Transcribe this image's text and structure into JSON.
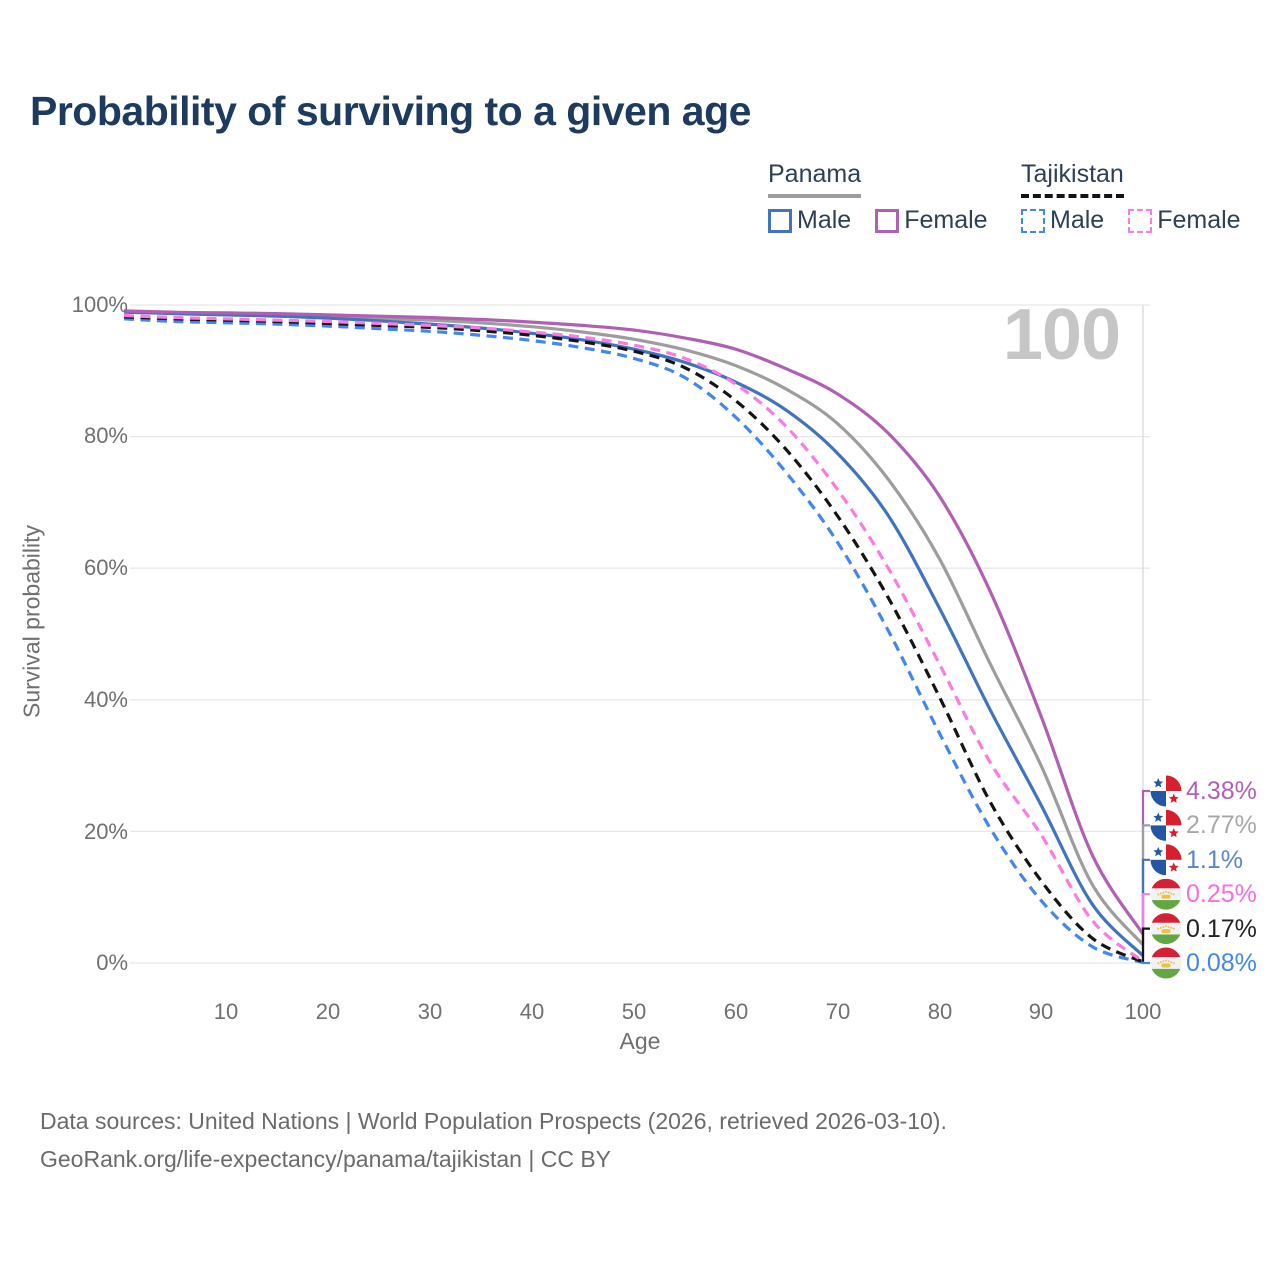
{
  "title": "Probability of surviving to a given age",
  "legend": {
    "groups": [
      {
        "label": "Panama",
        "line_style": "solid",
        "line_color": "#9d9d9d",
        "items": [
          {
            "label": "Male",
            "color": "#4273bd",
            "dash": false
          },
          {
            "label": "Female",
            "color": "#b05fb3",
            "dash": false
          }
        ]
      },
      {
        "label": "Tajikistan",
        "line_style": "dashed",
        "line_color": "#141414",
        "items": [
          {
            "label": "Male",
            "color": "#4187f0",
            "dash": true
          },
          {
            "label": "Female",
            "color": "#fb7ae3",
            "dash": true
          }
        ]
      }
    ]
  },
  "watermark": "100",
  "yaxis": {
    "label": "Survival probability",
    "ticks": [
      "100%",
      "80%",
      "60%",
      "40%",
      "20%",
      "0%"
    ]
  },
  "xaxis": {
    "label": "Age",
    "ticks": [
      "10",
      "20",
      "30",
      "40",
      "50",
      "60",
      "70",
      "80",
      "90",
      "100"
    ]
  },
  "end_labels": [
    {
      "text": "4.38%",
      "color": "#b061b3",
      "flag": "panama"
    },
    {
      "text": "2.77%",
      "color": "#a8a8a8",
      "flag": "panama"
    },
    {
      "text": "1.1%",
      "color": "#5c85c9",
      "flag": "panama"
    },
    {
      "text": "0.25%",
      "color": "#fb6ce0",
      "flag": "tajikistan"
    },
    {
      "text": "0.17%",
      "color": "#222222",
      "flag": "tajikistan"
    },
    {
      "text": "0.08%",
      "color": "#4187f0",
      "flag": "tajikistan"
    }
  ],
  "footer": {
    "lines": [
      "Data sources: United Nations | World Population Prospects (2026, retrieved 2026-03-10).",
      "GeoRank.org/life-expectancy/panama/tajikistan | CC BY"
    ]
  },
  "colors": {
    "title": "#1d3b5e",
    "grid": "#e8e8e8",
    "hover_line": "#dedede",
    "axis_text": "#707070",
    "watermark": "#c6c6c6",
    "panama_flag_red": "#d62030",
    "panama_flag_blue": "#2456a5",
    "tajik_flag_red": "#d32237",
    "tajik_flag_green": "#62a744",
    "tajik_flag_gold": "#e8c24a"
  },
  "chart_data": {
    "type": "line",
    "title": "Probability of surviving to a given age",
    "xlabel": "Age",
    "ylabel": "Survival probability",
    "xlim": [
      0,
      100
    ],
    "ylim": [
      0,
      100
    ],
    "grid": true,
    "legend_position": "top-right",
    "hover_age": 100,
    "x": [
      0,
      5,
      10,
      15,
      20,
      25,
      30,
      35,
      40,
      45,
      50,
      55,
      60,
      65,
      70,
      75,
      80,
      85,
      90,
      95,
      100
    ],
    "series": [
      {
        "name": "Panama Female",
        "color": "#b05fb3",
        "dash": "solid",
        "end_value_pct": 4.38,
        "end_label": "4.38%",
        "values": [
          99.1,
          98.9,
          98.8,
          98.7,
          98.5,
          98.3,
          98.1,
          97.8,
          97.4,
          96.9,
          96.2,
          95.0,
          93.3,
          90.3,
          86.5,
          80.5,
          71.0,
          56.5,
          37.5,
          16.5,
          4.38
        ]
      },
      {
        "name": "Panama Both sexes",
        "color": "#9d9d9d",
        "dash": "solid",
        "end_value_pct": 2.77,
        "end_label": "2.77%",
        "values": [
          99.0,
          98.8,
          98.7,
          98.5,
          98.3,
          98.0,
          97.7,
          97.3,
          96.7,
          95.9,
          94.8,
          93.2,
          90.8,
          87.2,
          82.0,
          73.5,
          61.5,
          45.5,
          30.0,
          12.0,
          2.77
        ]
      },
      {
        "name": "Panama Male",
        "color": "#4273bd",
        "dash": "solid",
        "end_value_pct": 1.1,
        "end_label": "1.1%",
        "values": [
          98.9,
          98.7,
          98.5,
          98.3,
          98.0,
          97.6,
          97.1,
          96.5,
          95.7,
          94.7,
          93.3,
          91.3,
          88.3,
          84.0,
          77.5,
          68.0,
          54.0,
          38.5,
          24.0,
          9.0,
          1.1
        ]
      },
      {
        "name": "Tajikistan Female",
        "color": "#fb7ae3",
        "dash": "dashed",
        "end_value_pct": 0.25,
        "end_label": "0.25%",
        "values": [
          98.4,
          98.1,
          97.9,
          97.7,
          97.5,
          97.2,
          96.9,
          96.5,
          95.9,
          95.1,
          93.9,
          91.9,
          88.0,
          81.5,
          72.0,
          60.0,
          45.5,
          30.5,
          19.5,
          6.5,
          0.25
        ]
      },
      {
        "name": "Tajikistan Both sexes",
        "color": "#141414",
        "dash": "dashed",
        "end_value_pct": 0.17,
        "end_label": "0.17%",
        "values": [
          98.2,
          97.9,
          97.7,
          97.5,
          97.2,
          96.9,
          96.6,
          96.1,
          95.4,
          94.4,
          93.0,
          90.5,
          85.5,
          78.0,
          68.0,
          55.5,
          40.5,
          24.5,
          12.5,
          3.8,
          0.17
        ]
      },
      {
        "name": "Tajikistan Male",
        "color": "#4187f0",
        "dash": "dashed",
        "end_value_pct": 0.08,
        "end_label": "0.08%",
        "values": [
          97.9,
          97.5,
          97.3,
          97.1,
          96.8,
          96.4,
          96.0,
          95.4,
          94.6,
          93.5,
          91.9,
          89.0,
          83.0,
          74.5,
          64.0,
          50.5,
          35.0,
          20.5,
          9.5,
          2.5,
          0.08
        ]
      }
    ]
  }
}
